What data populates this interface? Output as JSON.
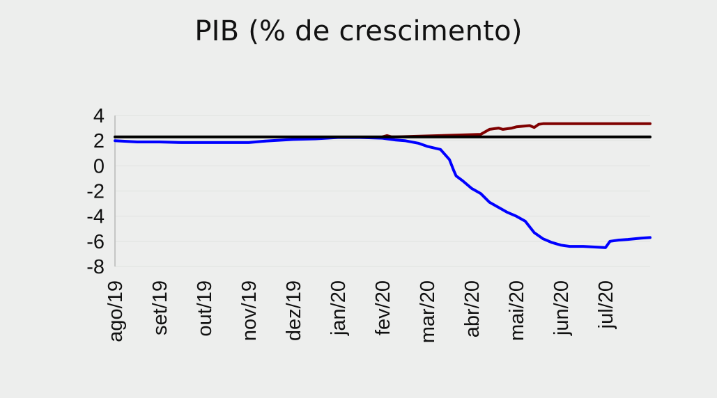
{
  "chart_data": {
    "type": "line",
    "title": "PIB (% de crescimento)",
    "xlabel": "",
    "ylabel": "",
    "ylim": [
      -8,
      4
    ],
    "yticks": [
      4,
      2,
      0,
      -2,
      -4,
      -6,
      -8
    ],
    "xticks": [
      "ago/19",
      "set/19",
      "out/19",
      "nov/19",
      "dez/19",
      "jan/20",
      "fev/20",
      "mar/20",
      "abr/20",
      "mai/20",
      "jun/20",
      "jul/20"
    ],
    "xlim": [
      0,
      12
    ],
    "grid": true,
    "legend": "none",
    "colors": {
      "blue_series": "#0000ff",
      "red_series": "#7f0000",
      "black_line": "#000000",
      "grid": "#e0e2e0",
      "background": "#edeeed"
    },
    "series": [
      {
        "color": "#0000ff",
        "x": [
          0,
          0.5,
          1.0,
          1.5,
          2.0,
          2.5,
          3.0,
          3.3,
          3.5,
          4.0,
          4.5,
          5.0,
          5.5,
          6.0,
          6.3,
          6.5,
          6.8,
          7.0,
          7.3,
          7.5,
          7.6,
          7.65,
          7.8,
          8.0,
          8.2,
          8.4,
          8.6,
          8.8,
          9.0,
          9.2,
          9.4,
          9.6,
          9.8,
          10.0,
          10.2,
          10.5,
          11.0,
          11.1,
          11.3,
          11.5,
          11.8,
          12.0
        ],
        "y": [
          2.0,
          1.9,
          1.9,
          1.85,
          1.85,
          1.85,
          1.85,
          1.95,
          2.0,
          2.1,
          2.15,
          2.25,
          2.25,
          2.2,
          2.05,
          2.0,
          1.8,
          1.55,
          1.3,
          0.5,
          -0.4,
          -0.8,
          -1.2,
          -1.8,
          -2.2,
          -2.9,
          -3.3,
          -3.7,
          -4.0,
          -4.4,
          -5.3,
          -5.8,
          -6.1,
          -6.3,
          -6.4,
          -6.4,
          -6.5,
          -6.0,
          -5.9,
          -5.85,
          -5.75,
          -5.7
        ]
      },
      {
        "color": "#7f0000",
        "x": [
          6.0,
          6.1,
          6.2,
          6.3,
          8.2,
          8.4,
          8.6,
          8.7,
          8.9,
          9.0,
          9.3,
          9.4,
          9.5,
          9.6,
          9.8,
          10.0,
          10.5,
          11.0,
          11.5,
          12.0
        ],
        "y": [
          2.3,
          2.4,
          2.3,
          2.3,
          2.5,
          2.9,
          3.0,
          2.9,
          3.0,
          3.1,
          3.2,
          3.05,
          3.3,
          3.35,
          3.35,
          3.35,
          3.35,
          3.35,
          3.35,
          3.35
        ]
      },
      {
        "color": "#000000",
        "x": [
          0,
          12
        ],
        "y": [
          2.3,
          2.3
        ]
      }
    ]
  }
}
